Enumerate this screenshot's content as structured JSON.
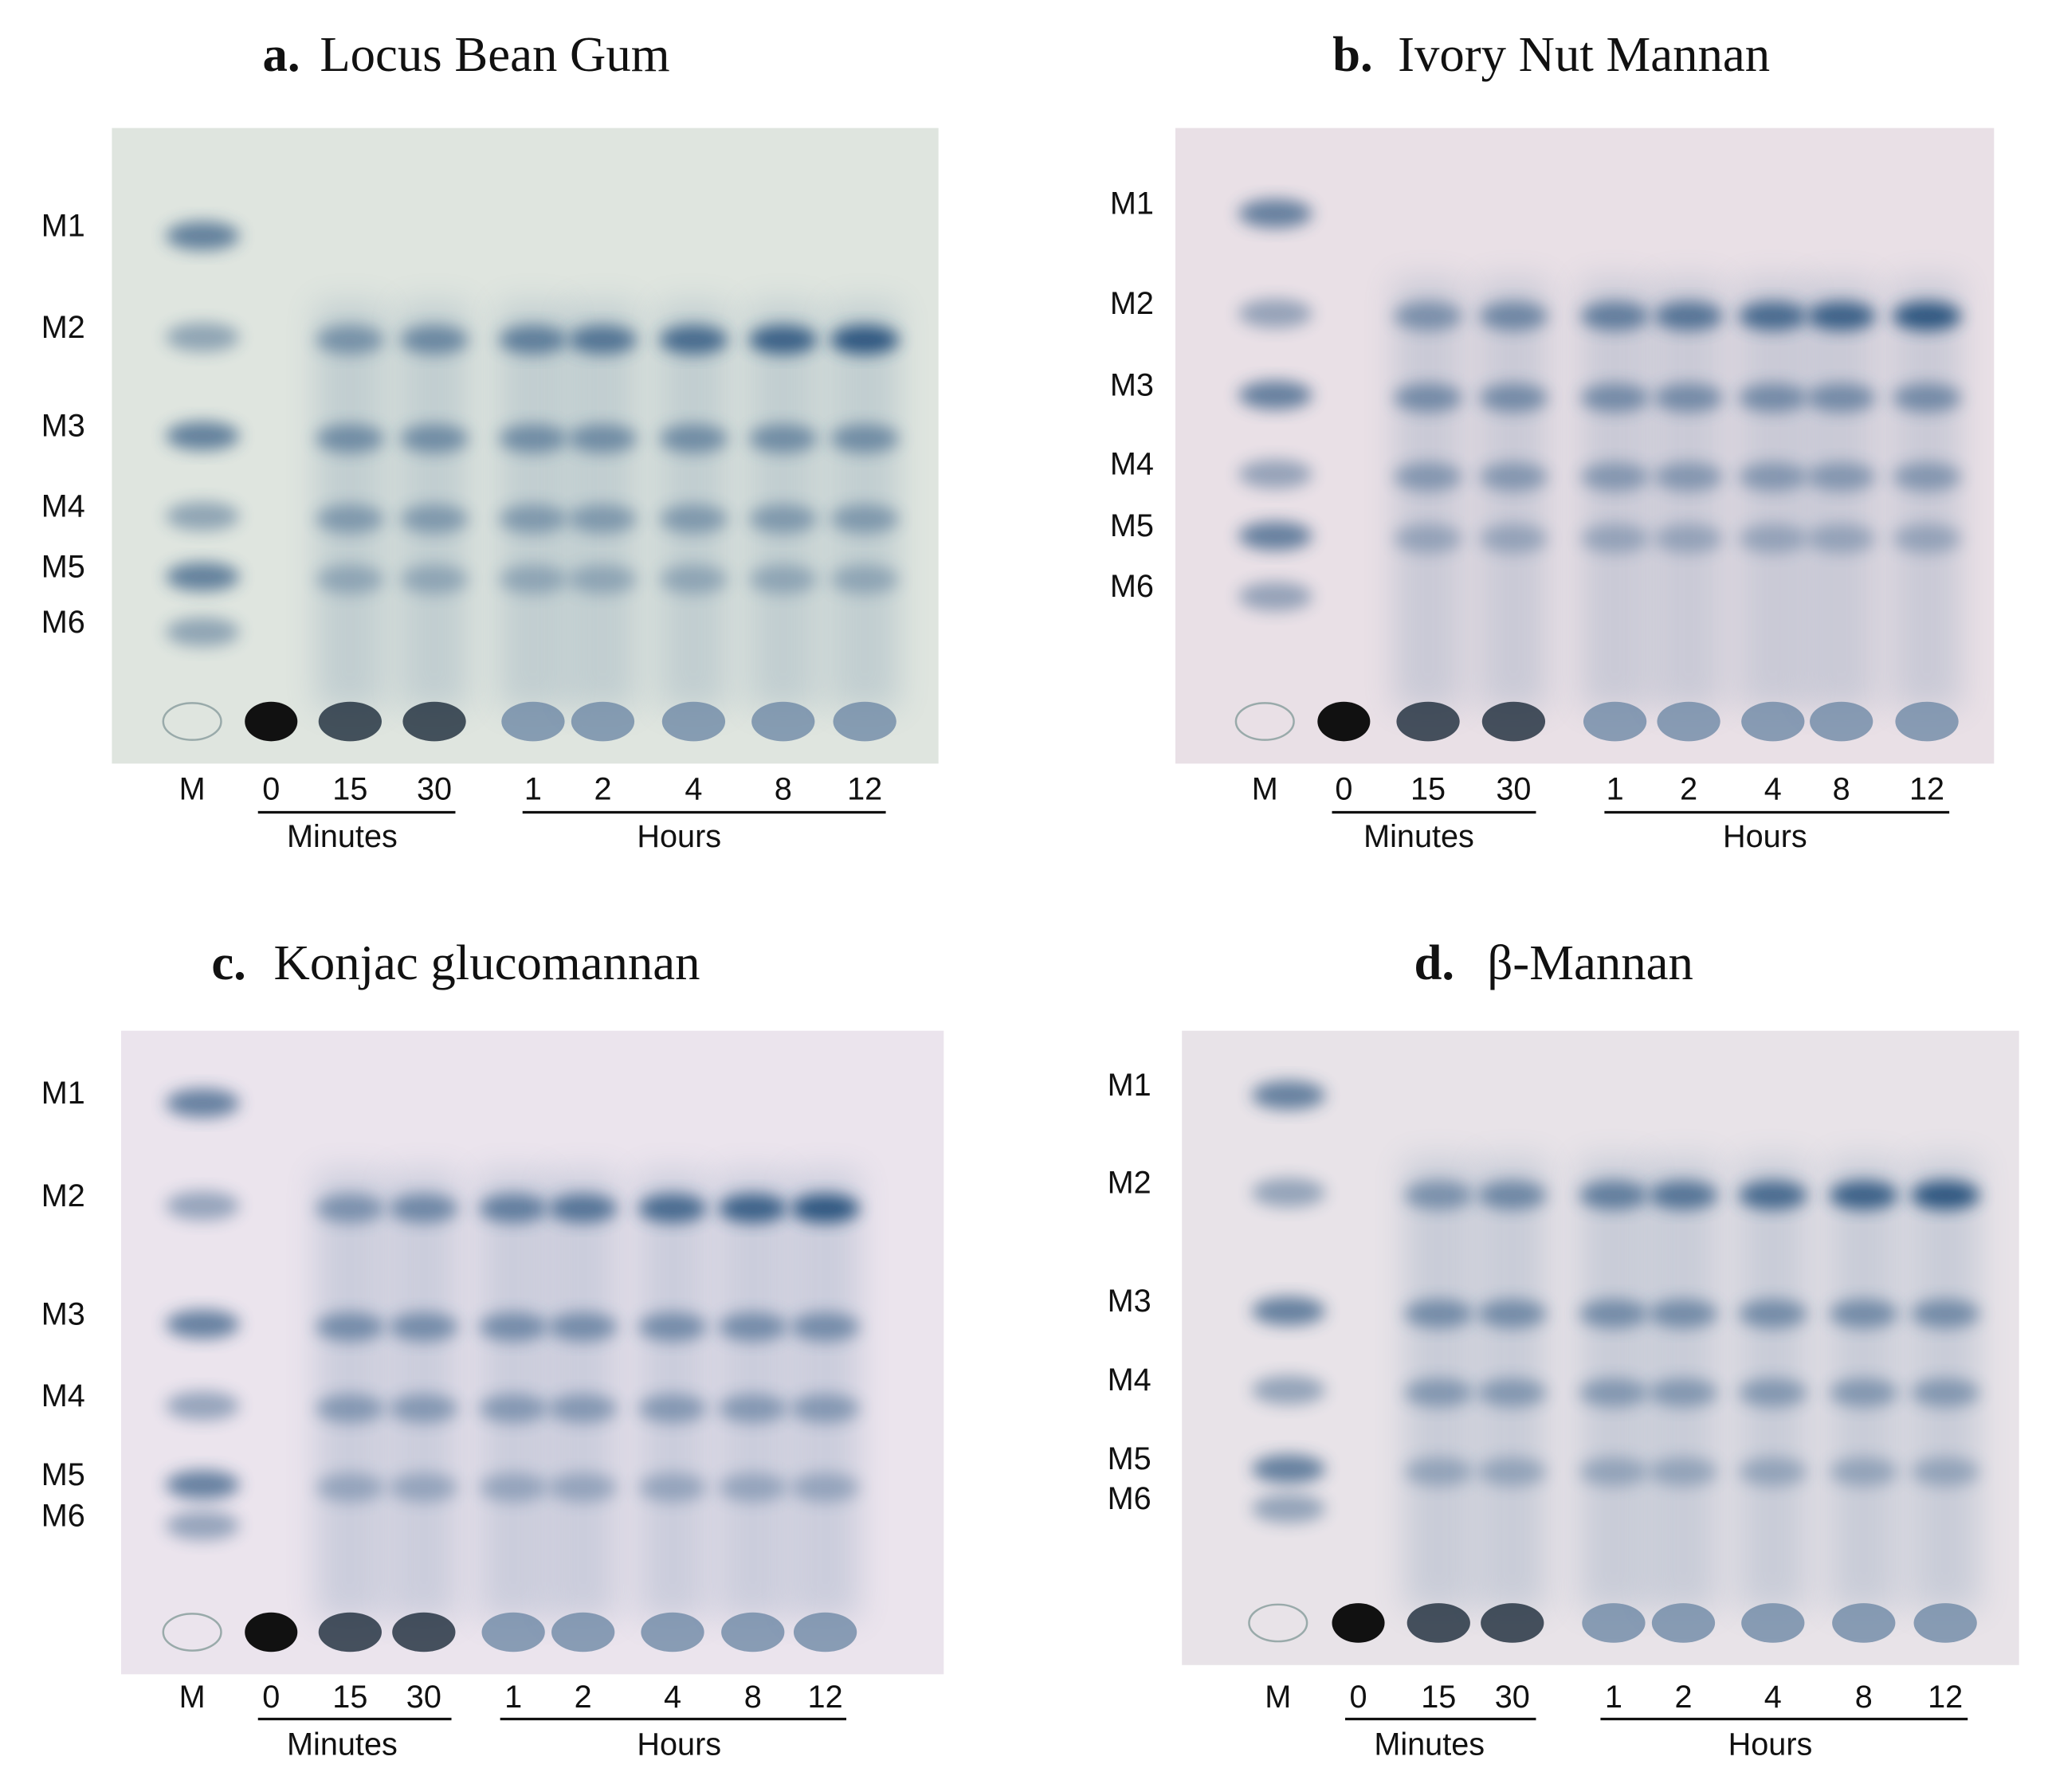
{
  "panels": [
    {
      "letter": "a.",
      "title": "Locus Bean Gum",
      "markers": [
        "M1",
        "M2",
        "M3",
        "M4",
        "M5",
        "M6"
      ],
      "lanes": [
        "M",
        "0",
        "15",
        "30",
        "1",
        "2",
        "4",
        "8",
        "12"
      ],
      "groups": [
        "Minutes",
        "Hours"
      ]
    },
    {
      "letter": "b.",
      "title": "Ivory Nut Mannan",
      "markers": [
        "M1",
        "M2",
        "M3",
        "M4",
        "M5",
        "M6"
      ],
      "lanes": [
        "M",
        "0",
        "15",
        "30",
        "1",
        "2",
        "4",
        "8",
        "12"
      ],
      "groups": [
        "Minutes",
        "Hours"
      ]
    },
    {
      "letter": "c.",
      "title": "Konjac glucomannan",
      "markers": [
        "M1",
        "M2",
        "M3",
        "M4",
        "M5",
        "M6"
      ],
      "lanes": [
        "M",
        "0",
        "15",
        "30",
        "1",
        "2",
        "4",
        "8",
        "12"
      ],
      "groups": [
        "Minutes",
        "Hours"
      ]
    },
    {
      "letter": "d.",
      "title": "β-Mannan",
      "markers": [
        "M1",
        "M2",
        "M3",
        "M4",
        "M5",
        "M6"
      ],
      "lanes": [
        "M",
        "0",
        "15",
        "30",
        "1",
        "2",
        "4",
        "8",
        "12"
      ],
      "groups": [
        "Minutes",
        "Hours"
      ]
    }
  ]
}
